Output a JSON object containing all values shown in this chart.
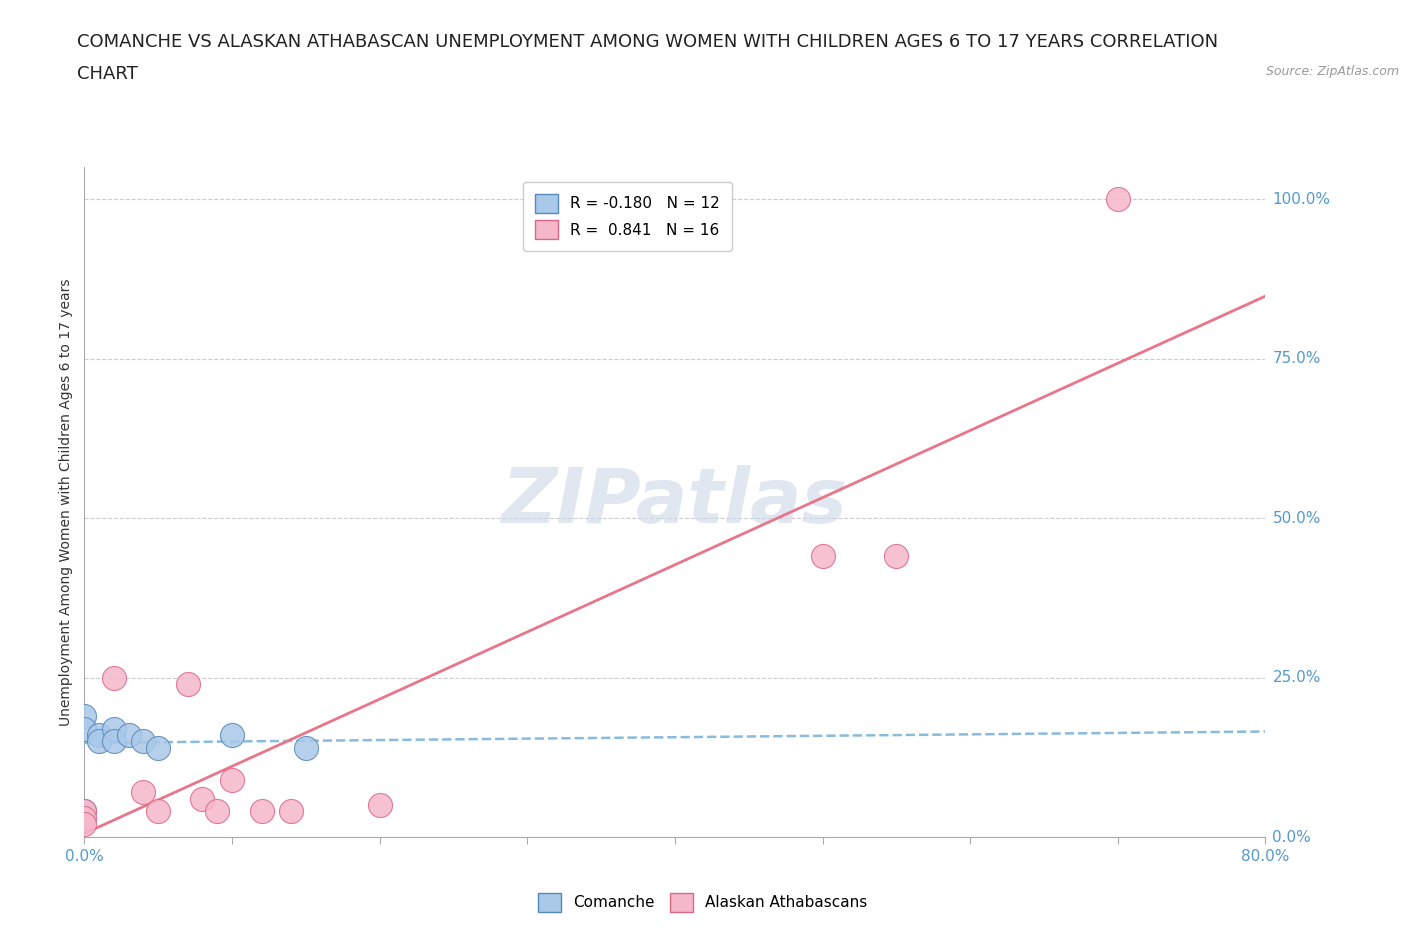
{
  "title_line1": "COMANCHE VS ALASKAN ATHABASCAN UNEMPLOYMENT AMONG WOMEN WITH CHILDREN AGES 6 TO 17 YEARS CORRELATION",
  "title_line2": "CHART",
  "source": "Source: ZipAtlas.com",
  "ylabel": "Unemployment Among Women with Children Ages 6 to 17 years",
  "ytick_labels": [
    "0.0%",
    "25.0%",
    "50.0%",
    "75.0%",
    "100.0%"
  ],
  "ytick_values": [
    0.0,
    0.25,
    0.5,
    0.75,
    1.0
  ],
  "xlim": [
    0.0,
    0.8
  ],
  "ylim": [
    0.0,
    1.05
  ],
  "comanche_color": "#aac8e8",
  "athabascan_color": "#f5b8ca",
  "comanche_edge": "#5588bb",
  "athabascan_edge": "#dd6688",
  "trend_comanche_color": "#88bbdd",
  "trend_athabascan_color": "#e8758a",
  "legend_comanche_R": "-0.180",
  "legend_comanche_N": "12",
  "legend_athabascan_R": "0.841",
  "legend_athabascan_N": "16",
  "watermark": "ZIPatlas",
  "watermark_color": "#ccd8e8",
  "comanche_x": [
    0.0,
    0.0,
    0.0,
    0.01,
    0.01,
    0.02,
    0.02,
    0.03,
    0.04,
    0.05,
    0.1,
    0.15
  ],
  "comanche_y": [
    0.19,
    0.17,
    0.04,
    0.16,
    0.15,
    0.17,
    0.15,
    0.16,
    0.15,
    0.14,
    0.16,
    0.14
  ],
  "athabascan_x": [
    0.0,
    0.0,
    0.0,
    0.02,
    0.04,
    0.05,
    0.07,
    0.08,
    0.09,
    0.1,
    0.12,
    0.14,
    0.2,
    0.5,
    0.55,
    0.7
  ],
  "athabascan_y": [
    0.04,
    0.03,
    0.02,
    0.25,
    0.07,
    0.04,
    0.24,
    0.06,
    0.04,
    0.09,
    0.04,
    0.04,
    0.05,
    0.44,
    0.44,
    1.0
  ],
  "grid_color": "#cccccc",
  "bg_color": "#ffffff",
  "title_fontsize": 13,
  "axis_label_fontsize": 10,
  "tick_fontsize": 11,
  "legend_fontsize": 11
}
